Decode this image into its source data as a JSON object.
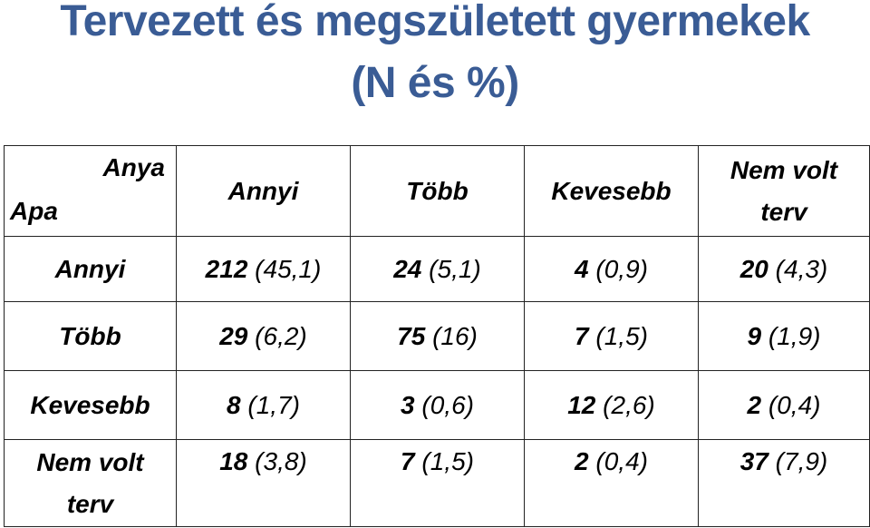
{
  "title": {
    "line1": "Tervezett és megszületett gyermekek",
    "line2": "(N és %)"
  },
  "table": {
    "corner_col_label": "Anya",
    "corner_row_label": "Apa",
    "columns": [
      {
        "line1": "Annyi",
        "line2": ""
      },
      {
        "line1": "Több",
        "line2": ""
      },
      {
        "line1": "Kevesebb",
        "line2": ""
      },
      {
        "line1": "Nem volt",
        "line2": "terv"
      }
    ],
    "rows": [
      {
        "label_line1": "Annyi",
        "label_line2": "",
        "cells": [
          {
            "n": "212",
            "pct": "(45,1)"
          },
          {
            "n": "24",
            "pct": "(5,1)"
          },
          {
            "n": "4",
            "pct": "(0,9)"
          },
          {
            "n": "20",
            "pct": "(4,3)"
          }
        ]
      },
      {
        "label_line1": "Több",
        "label_line2": "",
        "cells": [
          {
            "n": "29",
            "pct": "(6,2)"
          },
          {
            "n": "75",
            "pct": "(16)"
          },
          {
            "n": "7",
            "pct": "(1,5)"
          },
          {
            "n": "9",
            "pct": "(1,9)"
          }
        ]
      },
      {
        "label_line1": "Kevesebb",
        "label_line2": "",
        "cells": [
          {
            "n": "8",
            "pct": "(1,7)"
          },
          {
            "n": "3",
            "pct": "(0,6)"
          },
          {
            "n": "12",
            "pct": "(2,6)"
          },
          {
            "n": "2",
            "pct": "(0,4)"
          }
        ]
      },
      {
        "label_line1": "Nem volt",
        "label_line2": "terv",
        "cells": [
          {
            "n": "18",
            "pct": "(3,8)"
          },
          {
            "n": "7",
            "pct": "(1,5)"
          },
          {
            "n": "2",
            "pct": "(0,4)"
          },
          {
            "n": "37",
            "pct": "(7,9)"
          }
        ]
      }
    ]
  },
  "colors": {
    "title": "#3a5c95",
    "text": "#000000",
    "border": "#222222"
  }
}
